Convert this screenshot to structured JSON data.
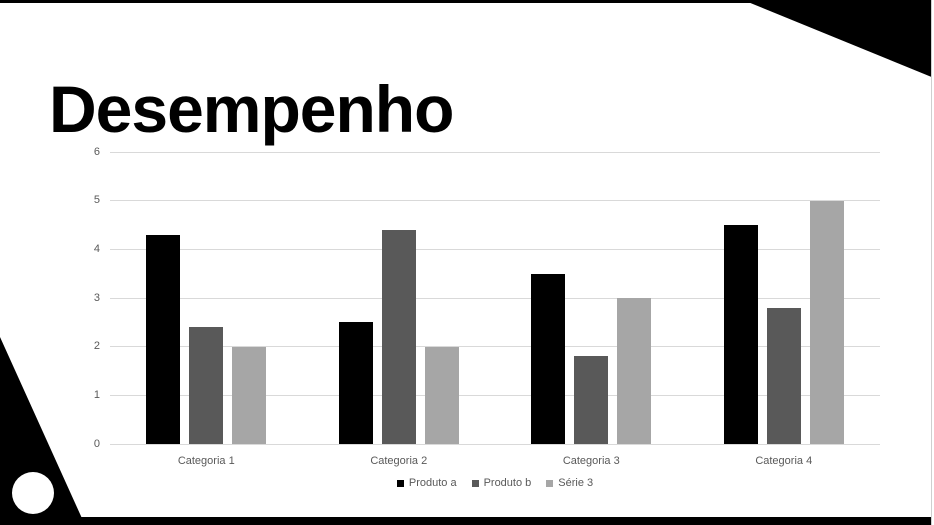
{
  "slide": {
    "title": "Desempenho",
    "background_color": "#ffffff",
    "accent_color": "#000000",
    "decorations": {
      "top_edge_bar_color": "#000000",
      "top_right_triangle_color": "#000000",
      "bottom_left_triangle_color": "#000000",
      "bottom_edge_bar_color": "#000000",
      "circle_color": "#ffffff"
    }
  },
  "chart_data": {
    "type": "bar",
    "title": "",
    "categories": [
      "Categoria 1",
      "Categoria 2",
      "Categoria 3",
      "Categoria 4"
    ],
    "series": [
      {
        "name": "Produto a",
        "color": "#000000",
        "values": [
          4.3,
          2.5,
          3.5,
          4.5
        ]
      },
      {
        "name": "Produto b",
        "color": "#595959",
        "values": [
          2.4,
          4.4,
          1.8,
          2.8
        ]
      },
      {
        "name": "Série 3",
        "color": "#a6a6a6",
        "values": [
          2.0,
          2.0,
          3.0,
          5.0
        ]
      }
    ],
    "xlabel": "",
    "ylabel": "",
    "ylim": [
      0,
      6
    ],
    "yticks": [
      0,
      1,
      2,
      3,
      4,
      5,
      6
    ],
    "grid": true,
    "gridline_color": "#d9d9d9",
    "axis_text_color": "#595959",
    "legend_position": "bottom"
  }
}
